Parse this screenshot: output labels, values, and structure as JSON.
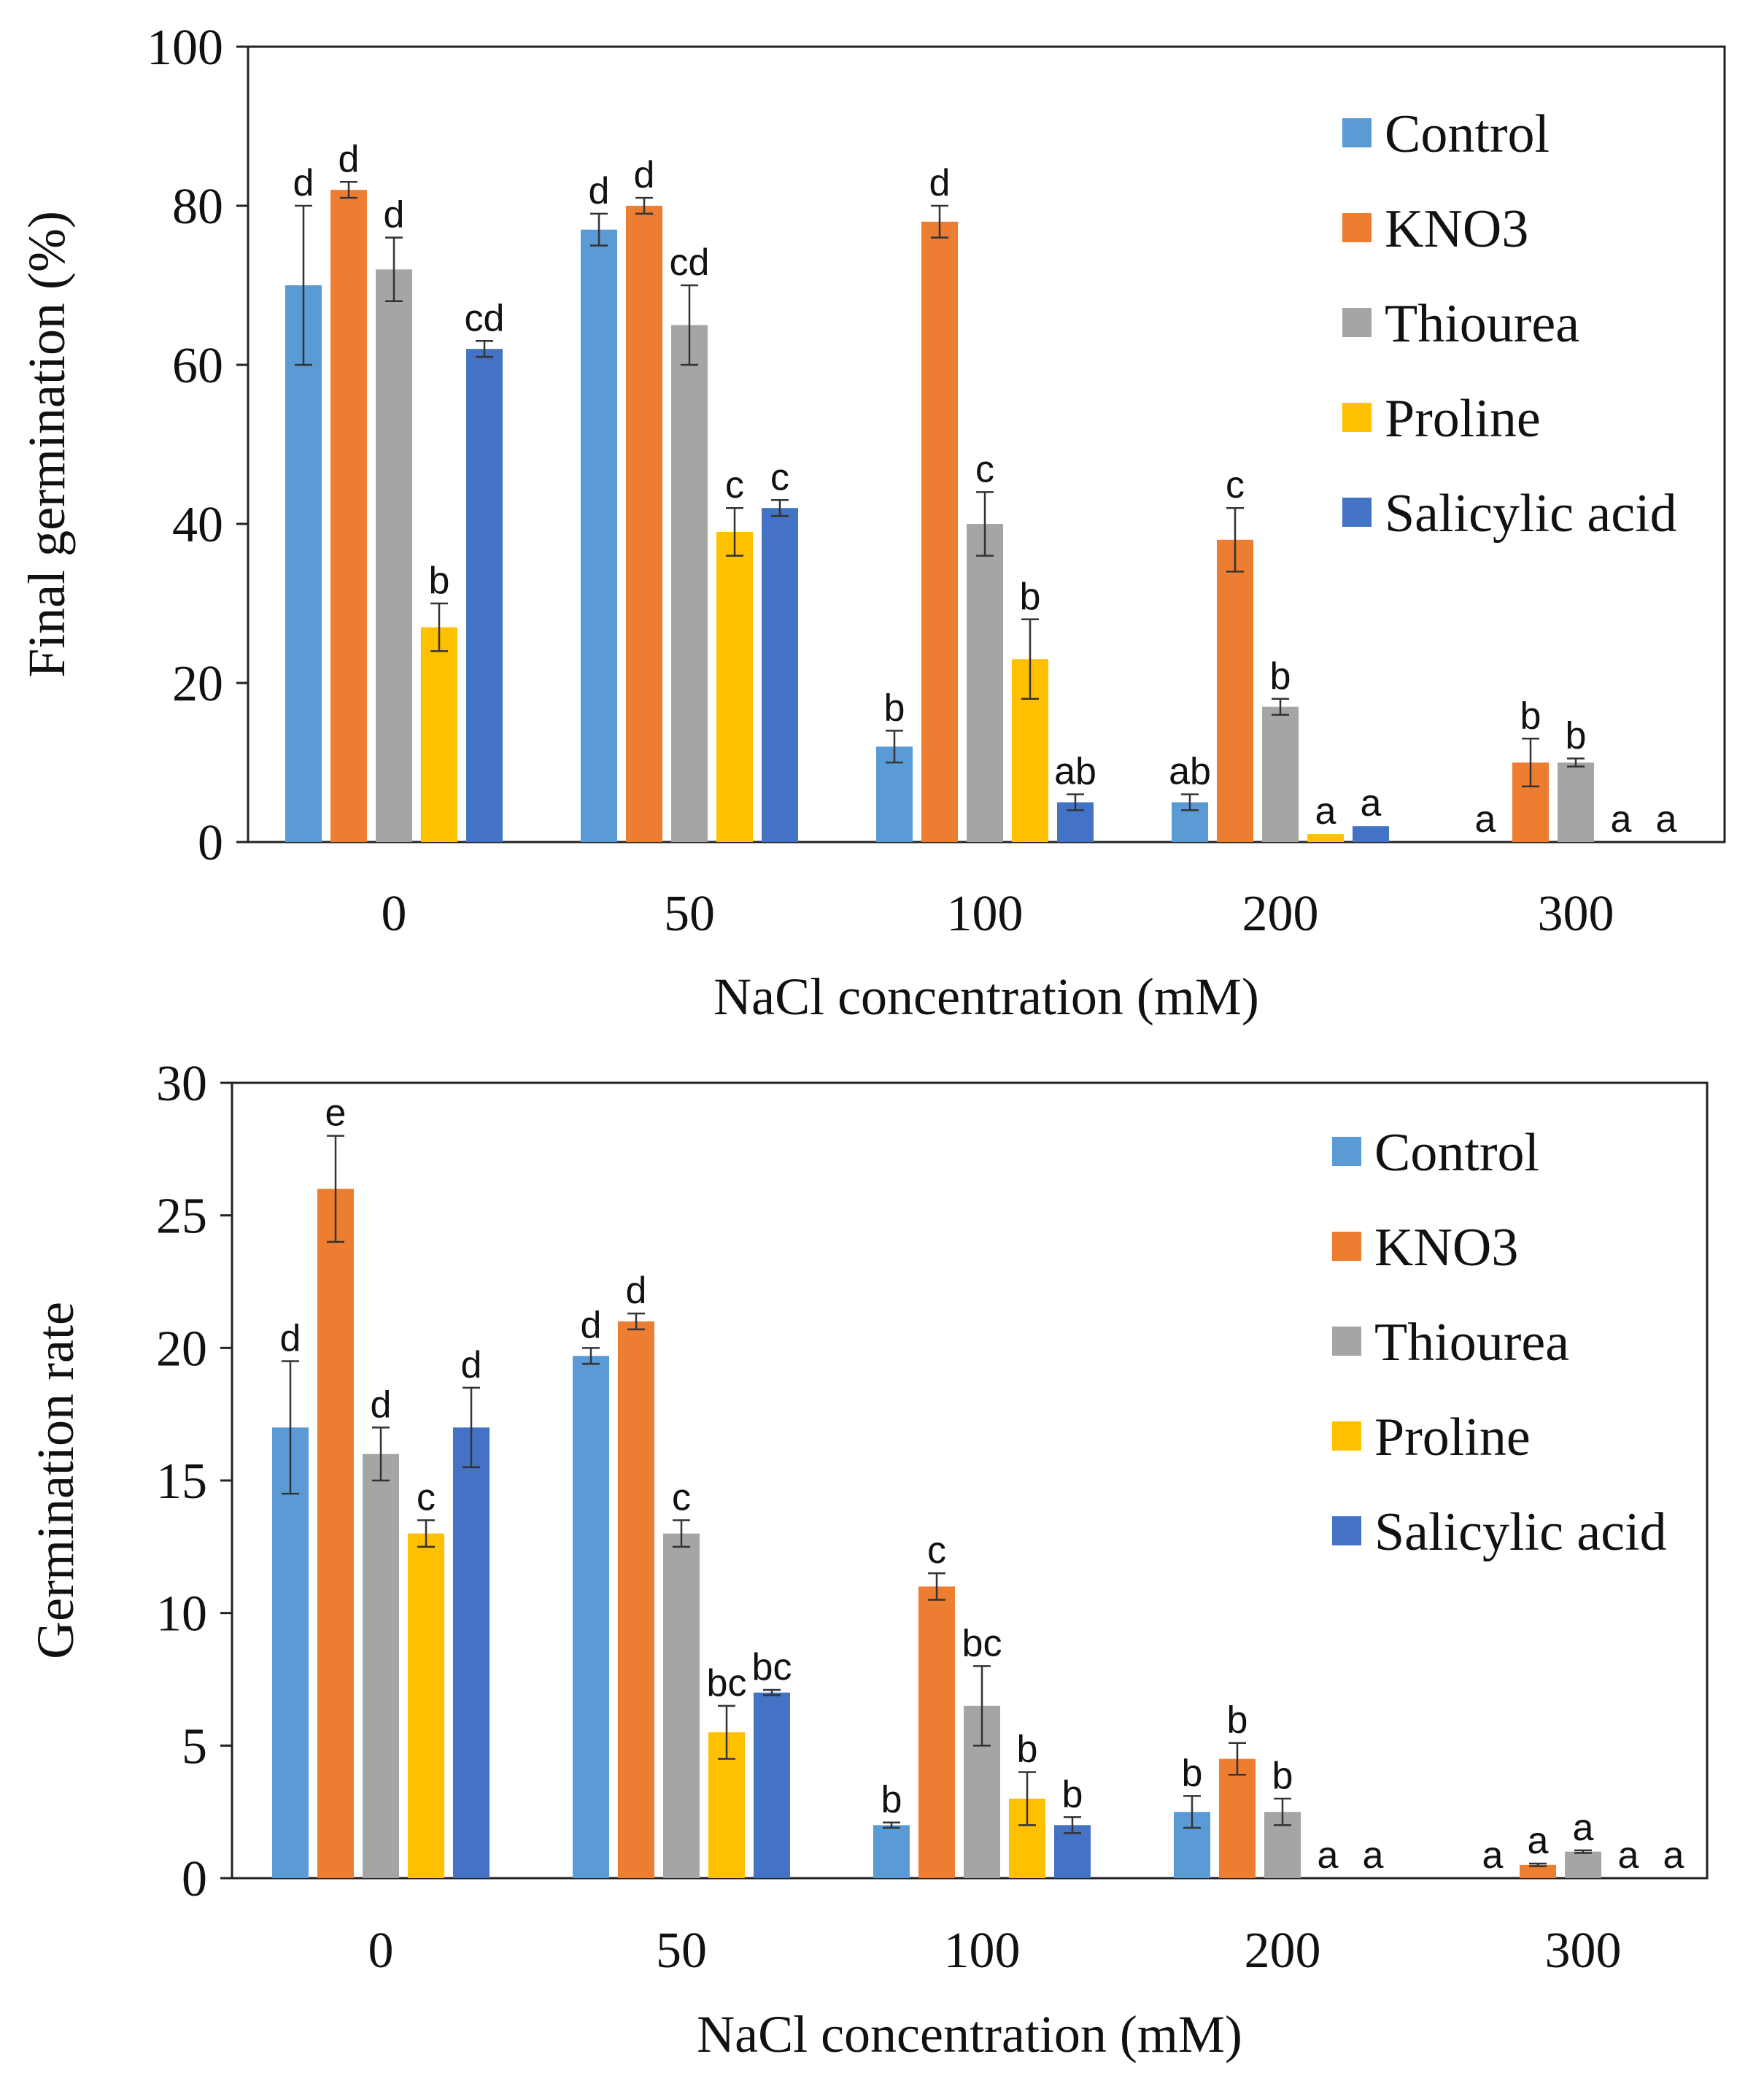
{
  "chart_data": [
    {
      "type": "bar",
      "title": "",
      "xlabel": "NaCl concentration (mM)",
      "ylabel": "Final germination (%)",
      "ylim": [
        0,
        100
      ],
      "yticks": [
        "0",
        "20",
        "40",
        "60",
        "80",
        "100"
      ],
      "categories": [
        "0",
        "50",
        "100",
        "200",
        "300"
      ],
      "legend_position": "top-right",
      "series": [
        {
          "name": "Control",
          "color": "#5B9BD5",
          "values": [
            70,
            77,
            12,
            5,
            0
          ],
          "errors": [
            10,
            2,
            2,
            1,
            0
          ],
          "letters": [
            "d",
            "d",
            "b",
            "ab",
            "a"
          ]
        },
        {
          "name": "KNO3",
          "color": "#ED7D31",
          "values": [
            82,
            80,
            78,
            38,
            10
          ],
          "errors": [
            1,
            1,
            2,
            4,
            3
          ],
          "letters": [
            "d",
            "d",
            "d",
            "c",
            "b"
          ]
        },
        {
          "name": "Thiourea",
          "color": "#A5A5A5",
          "values": [
            72,
            65,
            40,
            17,
            10
          ],
          "errors": [
            4,
            5,
            4,
            1,
            0.5
          ],
          "letters": [
            "d",
            "cd",
            "c",
            "b",
            "b"
          ]
        },
        {
          "name": "Proline",
          "color": "#FFC000",
          "values": [
            27,
            39,
            23,
            1,
            0
          ],
          "errors": [
            3,
            3,
            5,
            0,
            0
          ],
          "letters": [
            "b",
            "c",
            "b",
            "a",
            "a"
          ]
        },
        {
          "name": "Salicylic acid",
          "color": "#4472C4",
          "values": [
            62,
            42,
            5,
            2,
            0
          ],
          "errors": [
            1,
            1,
            1,
            0,
            0
          ],
          "letters": [
            "cd",
            "c",
            "ab",
            "a",
            "a"
          ]
        }
      ]
    },
    {
      "type": "bar",
      "title": "",
      "xlabel": "NaCl concentration  (mM)",
      "ylabel": "Germination rate",
      "ylim": [
        0,
        30
      ],
      "yticks": [
        "0",
        "5",
        "10",
        "15",
        "20",
        "25",
        "30"
      ],
      "categories": [
        "0",
        "50",
        "100",
        "200",
        "300"
      ],
      "legend_position": "top-right",
      "series": [
        {
          "name": "Control",
          "color": "#5B9BD5",
          "values": [
            17,
            19.7,
            2,
            2.5,
            0
          ],
          "errors": [
            2.5,
            0.3,
            0.1,
            0.6,
            0
          ],
          "letters": [
            "d",
            "d",
            "b",
            "b",
            "a"
          ]
        },
        {
          "name": "KNO3",
          "color": "#ED7D31",
          "values": [
            26,
            21,
            11,
            4.5,
            0.5
          ],
          "errors": [
            2,
            0.3,
            0.5,
            0.6,
            0.05
          ],
          "letters": [
            "e",
            "d",
            "c",
            "b",
            "a"
          ]
        },
        {
          "name": "Thiourea",
          "color": "#A5A5A5",
          "values": [
            16,
            13,
            6.5,
            2.5,
            1
          ],
          "errors": [
            1,
            0.5,
            1.5,
            0.5,
            0.05
          ],
          "letters": [
            "d",
            "c",
            "bc",
            "b",
            "a"
          ]
        },
        {
          "name": "Proline",
          "color": "#FFC000",
          "values": [
            13,
            5.5,
            3,
            0,
            0
          ],
          "errors": [
            0.5,
            1,
            1,
            0,
            0
          ],
          "letters": [
            "c",
            "bc",
            "b",
            "a",
            "a"
          ]
        },
        {
          "name": "Salicylic acid",
          "color": "#4472C4",
          "values": [
            17,
            7,
            2,
            0,
            0
          ],
          "errors": [
            1.5,
            0.1,
            0.3,
            0,
            0
          ],
          "letters": [
            "d",
            "bc",
            "b",
            "a",
            "a"
          ]
        }
      ]
    }
  ]
}
